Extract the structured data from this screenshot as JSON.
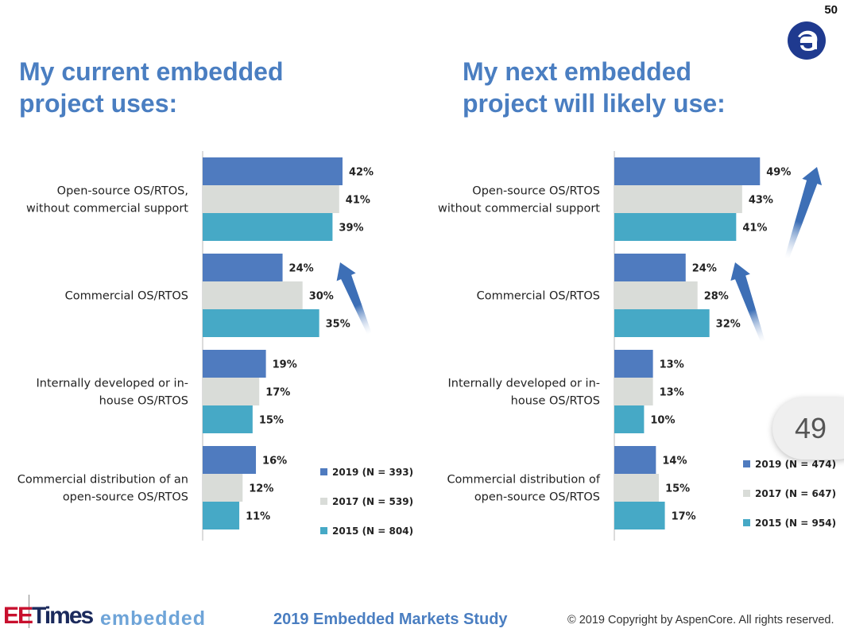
{
  "page_number": "50",
  "page_badge": "49",
  "colors": {
    "title": "#4a7ec1",
    "s2019": "#4f7bbf",
    "s2017": "#d9dcd8",
    "s2015": "#46a9c6",
    "arrow": "#3d6fb6"
  },
  "panels": [
    {
      "title": "My current embedded\nproject uses:"
    },
    {
      "title": "My next embedded\nproject will likely use:"
    }
  ],
  "chart_data": [
    {
      "type": "bar",
      "orientation": "horizontal",
      "categories": [
        "Open-source OS/RTOS,\nwithout commercial support",
        "Commercial OS/RTOS",
        "Internally developed or in-\nhouse OS/RTOS",
        "Commercial distribution of an\nopen-source OS/RTOS"
      ],
      "series": [
        {
          "name": "2019 (N = 393)",
          "values": [
            42,
            24,
            19,
            16
          ],
          "labels": [
            "42%",
            "24%",
            "19%",
            "16%"
          ]
        },
        {
          "name": "2017 (N = 539)",
          "values": [
            41,
            30,
            17,
            12
          ],
          "labels": [
            "41%",
            "30%",
            "17%",
            "12%"
          ]
        },
        {
          "name": "2015 (N = 804)",
          "values": [
            39,
            35,
            15,
            11
          ],
          "labels": [
            "39%",
            "35%",
            "15%",
            "11%"
          ]
        }
      ],
      "xlim": [
        0,
        55
      ],
      "legend": "bottom-right"
    },
    {
      "type": "bar",
      "orientation": "horizontal",
      "categories": [
        "Open-source OS/RTOS\nwithout commercial support",
        "Commercial OS/RTOS",
        "Internally developed or in-\nhouse OS/RTOS",
        "Commercial distribution of\nopen-source OS/RTOS"
      ],
      "series": [
        {
          "name": "2019 (N = 474)",
          "values": [
            49,
            24,
            13,
            14
          ],
          "labels": [
            "49%",
            "24%",
            "13%",
            "14%"
          ]
        },
        {
          "name": "2017 (N = 647)",
          "values": [
            43,
            28,
            13,
            15
          ],
          "labels": [
            "43%",
            "28%",
            "13%",
            "15%"
          ]
        },
        {
          "name": "2015 (N = 954)",
          "values": [
            41,
            32,
            10,
            17
          ],
          "labels": [
            "41%",
            "32%",
            "10%",
            "17%"
          ]
        }
      ],
      "xlim": [
        0,
        55
      ],
      "legend": "bottom-right"
    }
  ],
  "footer": {
    "brand_ee": "EE",
    "brand_times": "Times",
    "brand_embedded": "embedded",
    "study": "2019 Embedded Markets Study",
    "copyright": "© 2019 Copyright by AspenCore. All rights reserved."
  }
}
